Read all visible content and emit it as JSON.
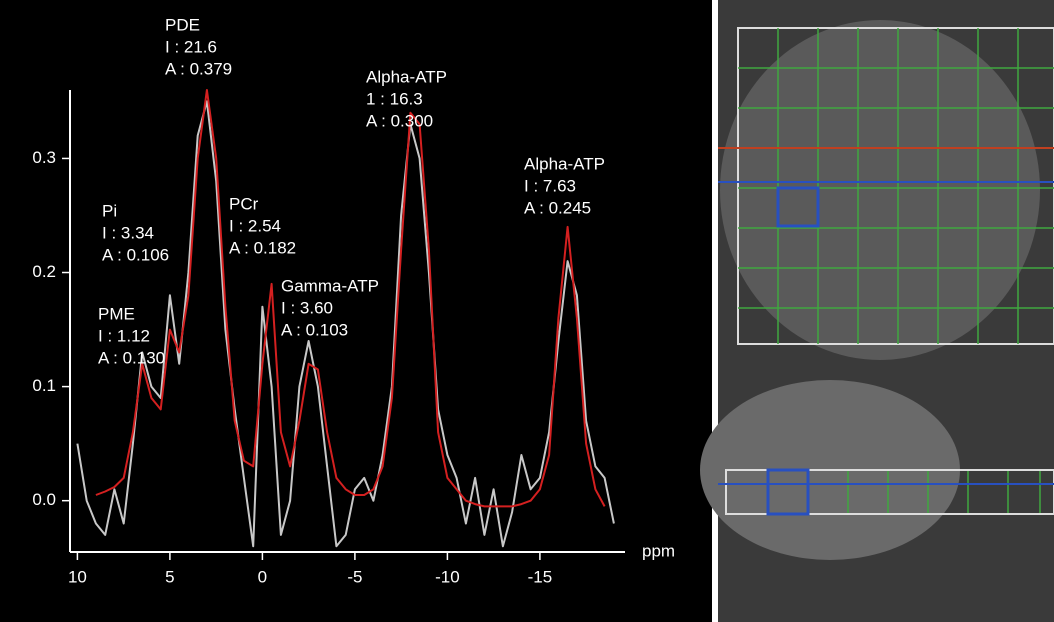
{
  "chart_data": {
    "type": "line",
    "x_label": "ppm",
    "xlim": [
      10.4,
      -19.6
    ],
    "ylim": [
      -0.045,
      0.36
    ],
    "xticks": [
      10,
      5,
      0,
      -5,
      -10,
      -15
    ],
    "yticks": [
      {
        "value": 0,
        "label": "0.0"
      },
      0.1,
      0.2,
      0.3
    ],
    "x": [
      10,
      9.5,
      9,
      8.5,
      8,
      7.5,
      7,
      6.5,
      6,
      5.5,
      5,
      4.5,
      4,
      3.5,
      3,
      2.5,
      2,
      1.5,
      1,
      0.5,
      0,
      -0.5,
      -1,
      -1.5,
      -2,
      -2.5,
      -3,
      -3.5,
      -4,
      -4.5,
      -5,
      -5.5,
      -6,
      -6.5,
      -7,
      -7.5,
      -8,
      -8.5,
      -9,
      -9.5,
      -10,
      -10.5,
      -11,
      -11.5,
      -12,
      -12.5,
      -13,
      -13.5,
      -14,
      -14.5,
      -15,
      -15.5,
      -16,
      -16.5,
      -17,
      -17.5,
      -18,
      -18.5,
      -19
    ],
    "series": [
      {
        "color": "#c8c8c8",
        "values": [
          0.05,
          0.0,
          -0.02,
          -0.03,
          0.01,
          -0.02,
          0.05,
          0.13,
          0.1,
          0.09,
          0.18,
          0.12,
          0.2,
          0.32,
          0.35,
          0.28,
          0.15,
          0.08,
          0.02,
          -0.04,
          0.17,
          0.1,
          -0.03,
          0.0,
          0.1,
          0.14,
          0.1,
          0.03,
          -0.04,
          -0.03,
          0.01,
          0.02,
          0.0,
          0.04,
          0.1,
          0.25,
          0.33,
          0.3,
          0.2,
          0.08,
          0.04,
          0.02,
          -0.02,
          0.02,
          -0.03,
          0.01,
          -0.04,
          -0.01,
          0.04,
          0.01,
          0.02,
          0.06,
          0.14,
          0.21,
          0.18,
          0.07,
          0.03,
          0.02,
          -0.02
        ]
      },
      {
        "color": "#d42020",
        "values": [
          null,
          null,
          0.005,
          0.008,
          0.012,
          0.02,
          0.06,
          0.12,
          0.09,
          0.08,
          0.15,
          0.13,
          0.18,
          0.3,
          0.36,
          0.3,
          0.17,
          0.07,
          0.035,
          0.03,
          0.12,
          0.19,
          0.06,
          0.03,
          0.07,
          0.12,
          0.115,
          0.06,
          0.02,
          0.01,
          0.005,
          0.005,
          0.01,
          0.03,
          0.09,
          0.22,
          0.34,
          0.33,
          0.22,
          0.06,
          0.02,
          0.01,
          0.0,
          -0.003,
          -0.005,
          -0.005,
          -0.005,
          -0.005,
          -0.003,
          0.0,
          0.01,
          0.04,
          0.16,
          0.24,
          0.16,
          0.05,
          0.01,
          -0.005,
          null
        ]
      }
    ],
    "annotations": [
      {
        "lines": [
          "PDE",
          "I : 21.6",
          "A : 0.379"
        ]
      },
      {
        "lines": [
          "Pi",
          "I : 3.34",
          "A : 0.106"
        ]
      },
      {
        "lines": [
          "PME",
          "I : 1.12",
          "A : 0.130"
        ]
      },
      {
        "lines": [
          "PCr",
          "I : 2.54",
          "A : 0.182"
        ]
      },
      {
        "lines": [
          "Gamma-ATP",
          "I : 3.60",
          "A : 0.103"
        ]
      },
      {
        "lines": [
          "Alpha-ATP",
          "1 : 16.3",
          "A : 0.300"
        ]
      },
      {
        "lines": [
          "Alpha-ATP",
          "I : 7.63",
          "A : 0.245"
        ]
      }
    ]
  }
}
